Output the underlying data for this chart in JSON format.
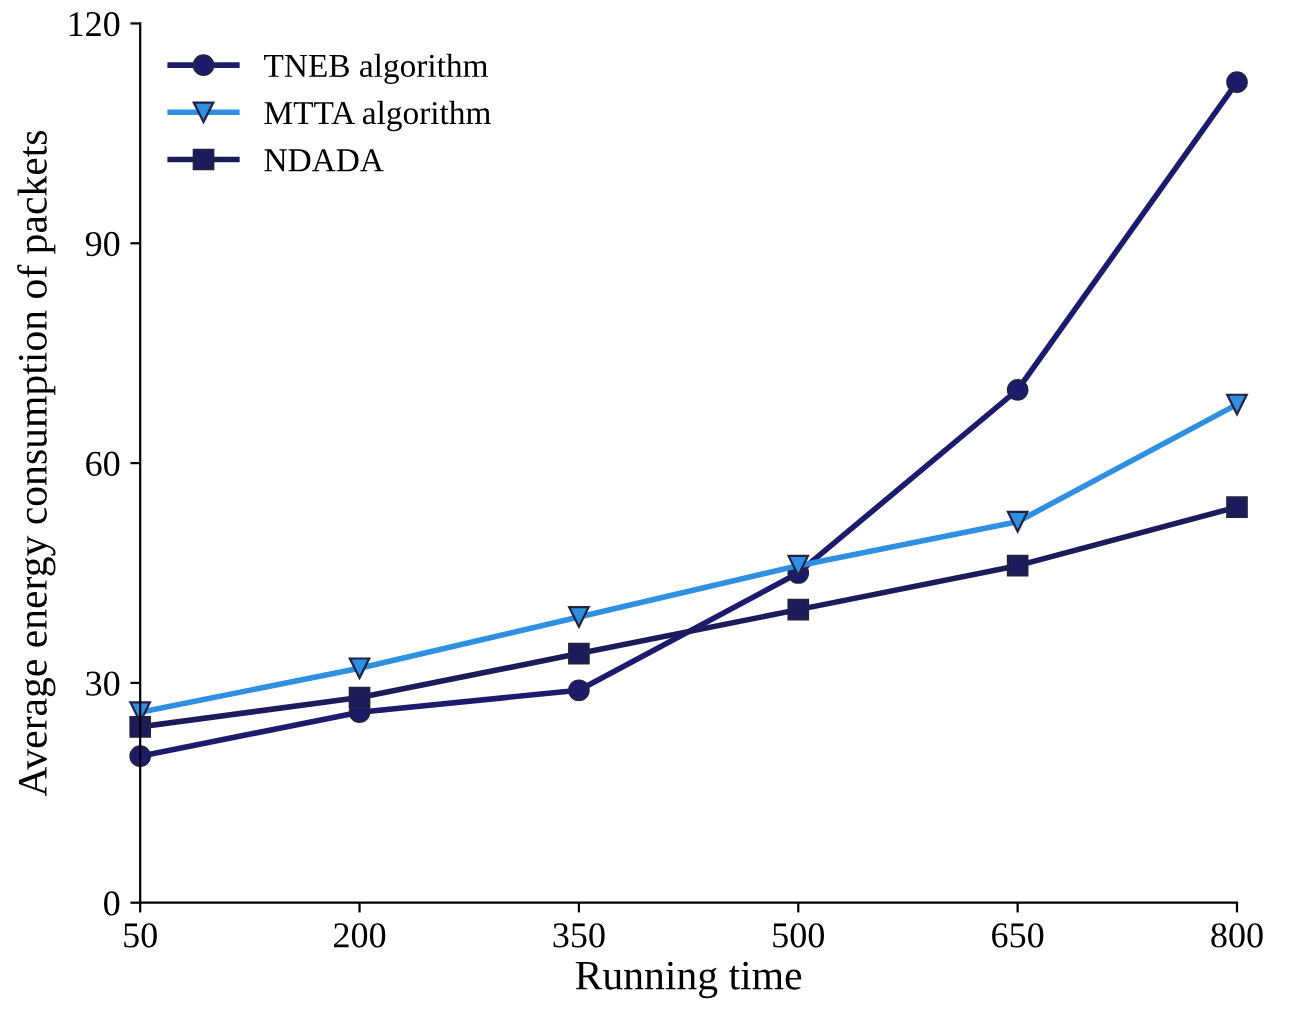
{
  "chart_data": {
    "type": "line",
    "xlabel": "Running time",
    "ylabel": "Average energy consumption of packets",
    "x": [
      50,
      200,
      350,
      500,
      650,
      800
    ],
    "series": [
      {
        "name": "TNEB algorithm",
        "color": "#1c1c6e",
        "marker": "circle",
        "values": [
          20,
          26,
          29,
          45,
          70,
          112
        ]
      },
      {
        "name": "MTTA algorithm",
        "color": "#2f8fe0",
        "marker": "triangle",
        "values": [
          26,
          32,
          39,
          46,
          52,
          68
        ]
      },
      {
        "name": "NDADA",
        "color": "#1c1c5c",
        "marker": "square",
        "values": [
          24,
          28,
          34,
          40,
          46,
          54
        ]
      }
    ],
    "xlim": [
      50,
      800
    ],
    "xticks": [
      50,
      200,
      350,
      500,
      650,
      800
    ],
    "ylim": [
      0,
      120
    ],
    "yticks": [
      0,
      30,
      60,
      90,
      120
    ],
    "grid": false,
    "legend": "top left",
    "line_style": "solid"
  }
}
